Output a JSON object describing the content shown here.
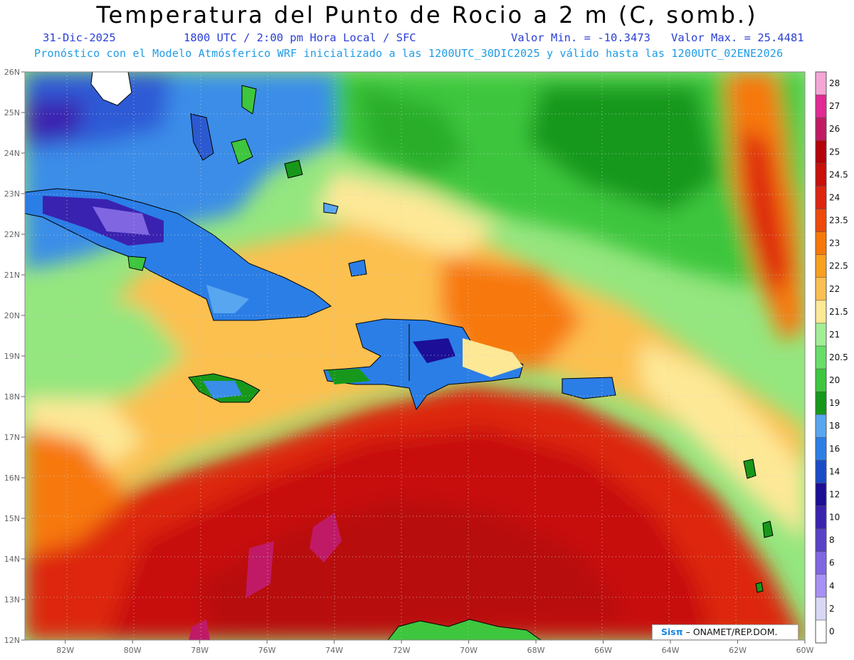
{
  "header": {
    "title": "Temperatura del Punto de Rocio a 2 m (C, somb.)",
    "date": "31-Dic-2025",
    "time_info": "1800 UTC / 2:00 pm Hora Local / SFC",
    "min_label": "Valor Min. = -10.3473",
    "max_label": "Valor Max. = 25.4481",
    "model_info": "Pronóstico con el Modelo Atmósferico WRF inicializado a las 1200UTC_30DIC2025 y válido hasta las  1200UTC_02ENE2026"
  },
  "map": {
    "lat_labels": [
      "26N",
      "25N",
      "24N",
      "23N",
      "22N",
      "21N",
      "20N",
      "19N",
      "18N",
      "17N",
      "16N",
      "15N",
      "14N",
      "13N",
      "12N"
    ],
    "lat_values": [
      26,
      25,
      24,
      23,
      22,
      21,
      20,
      19,
      18,
      17,
      16,
      15,
      14,
      13,
      12
    ],
    "lon_labels": [
      "82W",
      "80W",
      "78W",
      "76W",
      "74W",
      "72W",
      "70W",
      "68W",
      "66W",
      "64W",
      "62W",
      "60W"
    ],
    "lon_values": [
      -82,
      -80,
      -78,
      -76,
      -74,
      -72,
      -70,
      -68,
      -66,
      -64,
      -62,
      -60
    ],
    "extent": {
      "lon_min": -83.2,
      "lon_max": -60,
      "lat_min": 12,
      "lat_max": 26
    },
    "grid": true
  },
  "colorbar": {
    "levels": [
      "0",
      "2",
      "4",
      "6",
      "8",
      "10",
      "12",
      "14",
      "16",
      "18",
      "19",
      "20",
      "20.5",
      "21",
      "21.5",
      "22",
      "22.5",
      "23",
      "23.5",
      "24",
      "24.5",
      "25",
      "26",
      "27",
      "28"
    ],
    "colors": [
      "#ffffff",
      "#d8d8f6",
      "#a890f4",
      "#8066e0",
      "#5a42c8",
      "#3a22b0",
      "#1c0e96",
      "#1a4cc8",
      "#2b7ee6",
      "#58a6f0",
      "#17981a",
      "#3ec63e",
      "#68dd68",
      "#a2ee96",
      "#fde896",
      "#fcc050",
      "#f9a020",
      "#f77808",
      "#ee4a0a",
      "#dd2510",
      "#c8100c",
      "#b4020a",
      "#c01a66",
      "#e02a94",
      "#f4a6d6"
    ]
  },
  "credit": {
    "brand": "Sisπ",
    "text": " – ONAMET/REP.DOM."
  }
}
